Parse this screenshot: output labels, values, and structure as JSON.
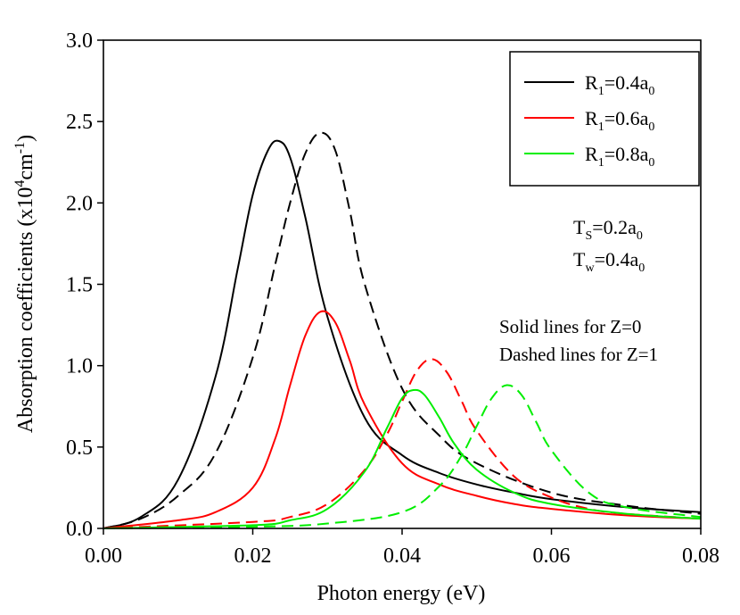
{
  "chart_data": {
    "type": "line",
    "title": "",
    "xlabel": "Photon energy (eV)",
    "ylabel": {
      "text": "Absorption coefficients (x10",
      "sup1": "4",
      "mid": "cm",
      "sup2": "-1",
      "end": ")"
    },
    "xlim": [
      0.0,
      0.08
    ],
    "ylim": [
      0.0,
      3.0
    ],
    "x_ticks": [
      "0.00",
      "0.02",
      "0.04",
      "0.06",
      "0.08"
    ],
    "y_ticks": [
      "0.0",
      "0.5",
      "1.0",
      "1.5",
      "2.0",
      "2.5",
      "3.0"
    ],
    "x_tick_values": [
      0.0,
      0.02,
      0.04,
      0.06,
      0.08
    ],
    "y_tick_values": [
      0.0,
      0.5,
      1.0,
      1.5,
      2.0,
      2.5,
      3.0
    ],
    "grid": false,
    "legend_position": "top-right",
    "legend": [
      {
        "prefix": "R",
        "sub": "1",
        "mid": "=0.4a",
        "sub2": "0",
        "color": "#000000"
      },
      {
        "prefix": "R",
        "sub": "1",
        "mid": "=0.6a",
        "sub2": "0",
        "color": "#ff0000"
      },
      {
        "prefix": "R",
        "sub": "1",
        "mid": "=0.8a",
        "sub2": "0",
        "color": "#00ee00"
      }
    ],
    "annotations": {
      "ts": {
        "prefix": "T",
        "sub": "S",
        "mid": "=0.2a",
        "sub2": "0"
      },
      "tw": {
        "prefix": "T",
        "sub": "w",
        "mid": "=0.4a",
        "sub2": "0"
      },
      "solid_note": "Solid lines for Z=0",
      "dashed_note": "Dashed lines for Z=1"
    },
    "series": [
      {
        "name": "R1=0.4a0, Z=0",
        "color": "#000000",
        "dash": false,
        "x": [
          0,
          0.005,
          0.01,
          0.015,
          0.018,
          0.02,
          0.022,
          0.0235,
          0.025,
          0.027,
          0.03,
          0.035,
          0.04,
          0.045,
          0.05,
          0.055,
          0.06,
          0.07,
          0.08
        ],
        "y": [
          0,
          0.07,
          0.3,
          0.93,
          1.6,
          2.05,
          2.32,
          2.38,
          2.28,
          1.92,
          1.3,
          0.68,
          0.45,
          0.34,
          0.27,
          0.22,
          0.18,
          0.13,
          0.1
        ]
      },
      {
        "name": "R1=0.4a0, Z=1",
        "color": "#000000",
        "dash": true,
        "x": [
          0,
          0.005,
          0.01,
          0.015,
          0.02,
          0.023,
          0.025,
          0.027,
          0.029,
          0.031,
          0.033,
          0.035,
          0.04,
          0.045,
          0.05,
          0.06,
          0.07,
          0.08
        ],
        "y": [
          0,
          0.06,
          0.2,
          0.46,
          1.05,
          1.62,
          2.0,
          2.3,
          2.43,
          2.33,
          1.95,
          1.5,
          0.86,
          0.57,
          0.4,
          0.22,
          0.14,
          0.09
        ]
      },
      {
        "name": "R1=0.6a0, Z=0",
        "color": "#ff0000",
        "dash": false,
        "x": [
          0,
          0.01,
          0.015,
          0.02,
          0.023,
          0.025,
          0.027,
          0.029,
          0.031,
          0.033,
          0.035,
          0.04,
          0.045,
          0.05,
          0.055,
          0.06,
          0.07,
          0.08
        ],
        "y": [
          0,
          0.05,
          0.1,
          0.25,
          0.55,
          0.88,
          1.18,
          1.33,
          1.27,
          1.03,
          0.76,
          0.4,
          0.27,
          0.2,
          0.15,
          0.12,
          0.08,
          0.06
        ]
      },
      {
        "name": "R1=0.6a0, Z=1",
        "color": "#ff0000",
        "dash": true,
        "x": [
          0,
          0.02,
          0.025,
          0.03,
          0.035,
          0.038,
          0.04,
          0.042,
          0.044,
          0.046,
          0.048,
          0.05,
          0.055,
          0.06,
          0.065,
          0.07,
          0.08
        ],
        "y": [
          0,
          0.04,
          0.07,
          0.15,
          0.36,
          0.58,
          0.78,
          0.97,
          1.04,
          0.96,
          0.78,
          0.6,
          0.32,
          0.19,
          0.12,
          0.09,
          0.06
        ]
      },
      {
        "name": "R1=0.8a0, Z=0",
        "color": "#00ee00",
        "dash": false,
        "x": [
          0,
          0.02,
          0.025,
          0.03,
          0.035,
          0.038,
          0.04,
          0.0415,
          0.043,
          0.045,
          0.047,
          0.05,
          0.055,
          0.06,
          0.07,
          0.08
        ],
        "y": [
          0,
          0.02,
          0.05,
          0.12,
          0.35,
          0.62,
          0.8,
          0.85,
          0.82,
          0.68,
          0.52,
          0.36,
          0.22,
          0.15,
          0.09,
          0.06
        ]
      },
      {
        "name": "R1=0.8a0, Z=1",
        "color": "#00ee00",
        "dash": true,
        "x": [
          0,
          0.02,
          0.03,
          0.04,
          0.045,
          0.048,
          0.05,
          0.052,
          0.054,
          0.056,
          0.058,
          0.06,
          0.065,
          0.07,
          0.08
        ],
        "y": [
          0,
          0.01,
          0.03,
          0.1,
          0.26,
          0.45,
          0.63,
          0.8,
          0.88,
          0.82,
          0.65,
          0.48,
          0.22,
          0.13,
          0.07
        ]
      }
    ]
  }
}
